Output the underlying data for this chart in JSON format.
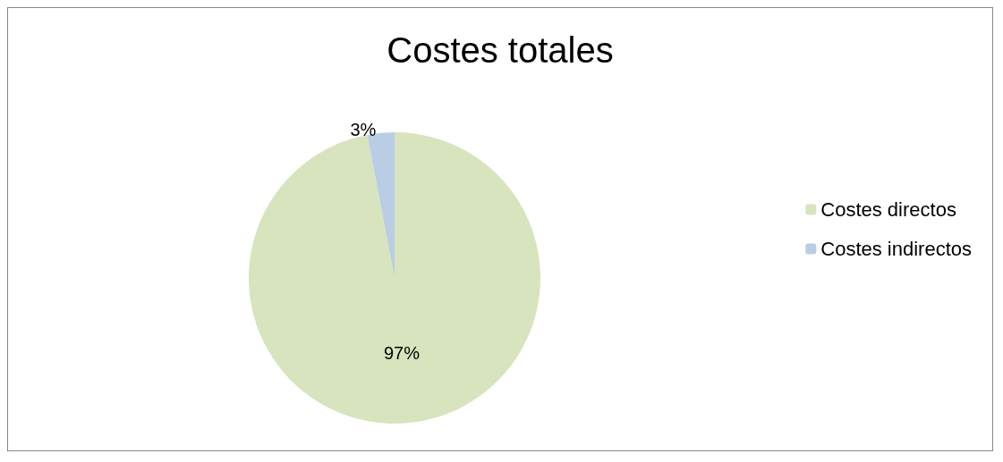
{
  "chart_data": {
    "type": "pie",
    "title": "Costes totales",
    "categories": [
      "Costes directos",
      "Costes indirectos"
    ],
    "values": [
      97,
      3
    ],
    "colors": [
      "#d7e4bd",
      "#b9cde5"
    ],
    "value_labels": [
      "97%",
      "3%"
    ],
    "legend": "right"
  }
}
